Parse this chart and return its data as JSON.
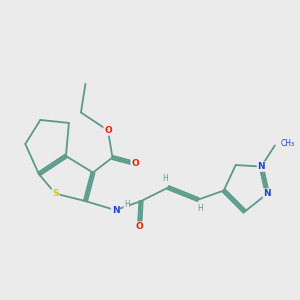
{
  "bg_color": "#ebebeb",
  "bond_color": "#5a9a8a",
  "sulfur_color": "#cccc00",
  "oxygen_color": "#dd2200",
  "nitrogen_color": "#2244cc",
  "text_color": "#5a9a8a",
  "figsize": [
    3.0,
    3.0
  ],
  "dpi": 100,
  "atoms": {
    "S": "#cccc00",
    "O": "#dd2200",
    "N": "#2244cc",
    "C": "#5a9a8a",
    "H": "#5a9a8a"
  }
}
